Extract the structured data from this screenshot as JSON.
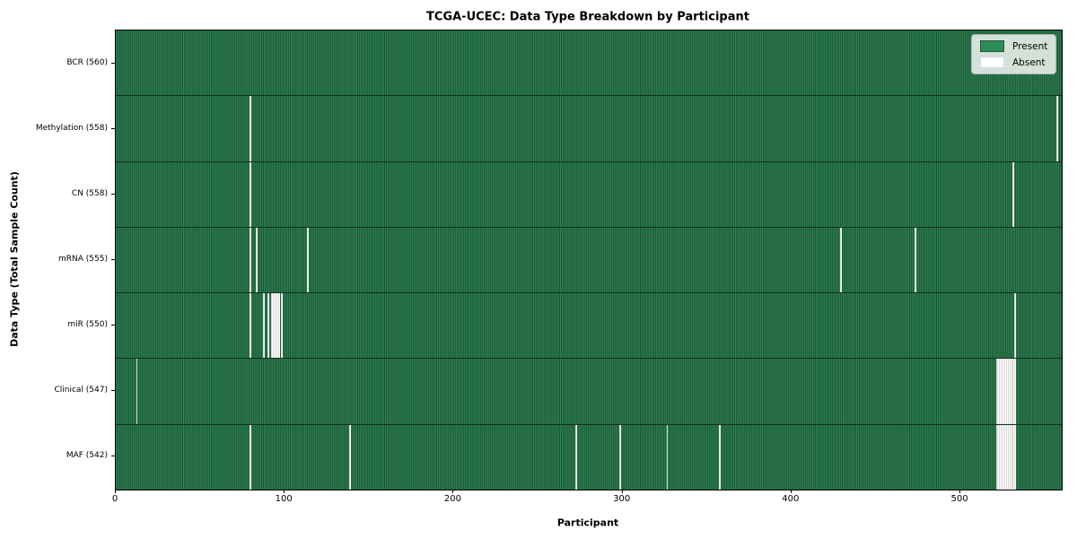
{
  "chart_data": {
    "type": "heatmap",
    "title": "TCGA-UCEC: Data Type Breakdown by Participant",
    "xlabel": "Participant",
    "ylabel": "Data Type (Total Sample Count)",
    "x_ticks": [
      0,
      100,
      200,
      300,
      400,
      500
    ],
    "xlim": [
      0,
      560
    ],
    "total_participants": 560,
    "grid": false,
    "legend_position": "upper right",
    "present_color": "#2e8b57",
    "present_edge_color": "#1c4e31",
    "absent_color": "#ffffff",
    "legend": [
      {
        "label": "Present",
        "color": "#2e8b57"
      },
      {
        "label": "Absent",
        "color": "#ffffff"
      }
    ],
    "rows": [
      {
        "data_type": "BCR",
        "count": 560,
        "tick_label": "BCR (560)",
        "absent_participants": []
      },
      {
        "data_type": "Methylation",
        "count": 558,
        "tick_label": "Methylation (558)",
        "absent_participants": [
          79,
          557
        ]
      },
      {
        "data_type": "CN",
        "count": 558,
        "tick_label": "CN (558)",
        "absent_participants": [
          79,
          531
        ]
      },
      {
        "data_type": "mRNA",
        "count": 555,
        "tick_label": "mRNA (555)",
        "absent_participants": [
          79,
          83,
          113,
          429,
          473
        ]
      },
      {
        "data_type": "miR",
        "count": 550,
        "tick_label": "miR (550)",
        "absent_participants": [
          79,
          87,
          90,
          92,
          93,
          94,
          95,
          96,
          98,
          532
        ]
      },
      {
        "data_type": "Clinical",
        "count": 547,
        "tick_label": "Clinical (547)",
        "absent_participants": [
          12,
          521,
          522,
          523,
          524,
          525,
          526,
          527,
          528,
          529,
          530,
          531,
          532
        ]
      },
      {
        "data_type": "MAF",
        "count": 542,
        "tick_label": "MAF (542)",
        "absent_participants": [
          79,
          138,
          272,
          298,
          326,
          357,
          521,
          522,
          523,
          524,
          525,
          526,
          527,
          528,
          529,
          530,
          531,
          532
        ]
      }
    ]
  }
}
